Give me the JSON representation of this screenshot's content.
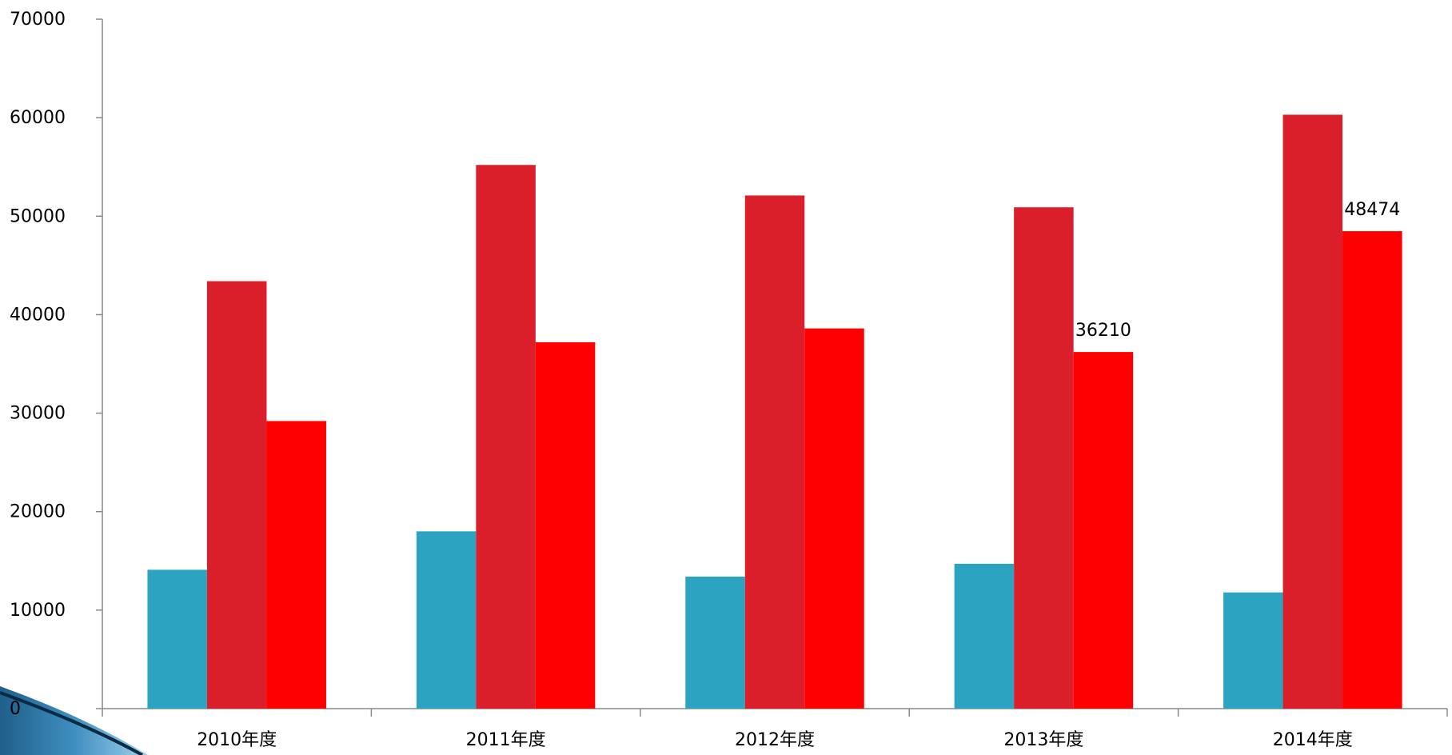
{
  "chart_data": {
    "type": "bar",
    "categories": [
      "2010年度",
      "2011年度",
      "2012年度",
      "2013年度",
      "2014年度"
    ],
    "series": [
      {
        "color": "#2ca3c0",
        "values": [
          14100,
          18000,
          13400,
          14700,
          11800
        ]
      },
      {
        "color": "#da1f2b",
        "values": [
          43400,
          55200,
          52100,
          50900,
          60300
        ]
      },
      {
        "color": "#ff0000",
        "values": [
          29200,
          37200,
          38600,
          36210,
          48474
        ]
      }
    ],
    "data_labels": [
      {
        "series": 2,
        "category": 3,
        "text": "36210"
      },
      {
        "series": 2,
        "category": 4,
        "text": "48474"
      }
    ],
    "ylim": [
      0,
      70000
    ],
    "yticks": [
      "0",
      "10000",
      "20000",
      "30000",
      "40000",
      "50000",
      "60000",
      "70000"
    ],
    "grid": false,
    "legend": "none"
  },
  "decoration": {
    "corner_shape": "blue-gradient-wedge"
  }
}
